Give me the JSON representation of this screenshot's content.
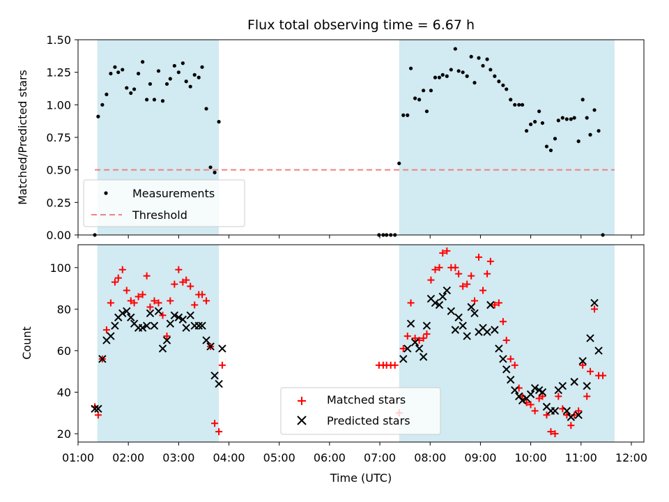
{
  "chart_data": [
    {
      "type": "scatter",
      "title": "Flux total observing time = 6.67 h",
      "xlabel": "",
      "ylabel": "Matched/Predicted stars",
      "xlim": [
        "01:00",
        "12:15"
      ],
      "ylim": [
        0,
        1.5
      ],
      "yticks": [
        "0.00",
        "0.25",
        "0.50",
        "0.75",
        "1.00",
        "1.25",
        "1.50"
      ],
      "grid": false,
      "legend_position": "lower-left",
      "shaded_spans": [
        {
          "start": "01:23",
          "end": "03:48",
          "color": "#add8e6"
        },
        {
          "start": "07:23",
          "end": "11:40",
          "color": "#add8e6"
        }
      ],
      "threshold": {
        "name": "Threshold",
        "value": 0.5,
        "x_start": "01:20",
        "x_end": "11:40",
        "color": "#f08080",
        "style": "dashed"
      },
      "series": [
        {
          "name": "Measurements",
          "marker": "dot",
          "color": "#000000",
          "x": [
            "01:20",
            "01:24",
            "01:29",
            "01:34",
            "01:39",
            "01:44",
            "01:48",
            "01:53",
            "01:58",
            "02:03",
            "02:07",
            "02:12",
            "02:17",
            "02:22",
            "02:26",
            "02:31",
            "02:36",
            "02:41",
            "02:46",
            "02:50",
            "02:55",
            "03:00",
            "03:05",
            "03:09",
            "03:14",
            "03:19",
            "03:24",
            "03:28",
            "03:33",
            "03:38",
            "03:43",
            "03:48",
            "03:52",
            "03:57",
            "06:59",
            "07:04",
            "07:08",
            "07:13",
            "07:18",
            "07:23",
            "07:28",
            "07:33",
            "07:37",
            "07:42",
            "07:47",
            "07:52",
            "07:56",
            "08:01",
            "08:06",
            "08:11",
            "08:15",
            "08:20",
            "08:25",
            "08:30",
            "08:34",
            "08:39",
            "08:44",
            "08:49",
            "08:53",
            "08:58",
            "09:03",
            "09:08",
            "09:12",
            "09:17",
            "09:22",
            "09:27",
            "09:31",
            "09:36",
            "09:41",
            "09:46",
            "09:50",
            "09:55",
            "10:00",
            "10:05",
            "10:10",
            "10:14",
            "10:19",
            "10:24",
            "10:29",
            "10:33",
            "10:38",
            "10:43",
            "10:48",
            "10:52",
            "10:57",
            "11:02",
            "11:07",
            "11:11",
            "11:16",
            "11:21",
            "11:26",
            "11:31",
            "11:35",
            "11:40",
            "11:45"
          ],
          "y": [
            0.0,
            0.91,
            1.0,
            1.08,
            1.24,
            1.29,
            1.25,
            1.27,
            1.13,
            1.09,
            1.12,
            1.24,
            1.33,
            1.04,
            1.16,
            1.04,
            1.26,
            1.03,
            1.16,
            1.2,
            1.3,
            1.25,
            1.32,
            1.18,
            1.14,
            1.23,
            1.21,
            1.29,
            0.97,
            0.52,
            0.48,
            0.87,
            null,
            null,
            0.0,
            0.0,
            0.0,
            0.0,
            0.0,
            0.55,
            0.92,
            0.92,
            1.28,
            1.05,
            1.04,
            1.11,
            0.95,
            1.11,
            1.21,
            1.21,
            1.23,
            1.22,
            1.27,
            1.43,
            1.26,
            1.25,
            1.22,
            1.37,
            1.17,
            1.36,
            1.3,
            1.35,
            1.27,
            1.22,
            1.18,
            1.15,
            1.12,
            1.04,
            1.0,
            1.0,
            1.0,
            0.8,
            0.85,
            0.87,
            0.95,
            0.86,
            0.68,
            0.65,
            0.74,
            0.88,
            0.9,
            0.89,
            0.89,
            0.9,
            0.72,
            1.04,
            0.9,
            0.77,
            0.96,
            0.8,
            0.0,
            null,
            null,
            null,
            null
          ]
        }
      ]
    },
    {
      "type": "scatter",
      "title": "",
      "xlabel": "Time (UTC)",
      "ylabel": "Count",
      "xlim": [
        "01:00",
        "12:15"
      ],
      "ylim": [
        16,
        111
      ],
      "yticks": [
        "20",
        "40",
        "60",
        "80",
        "100"
      ],
      "xticks": [
        "01:00",
        "02:00",
        "03:00",
        "04:00",
        "05:00",
        "06:00",
        "07:00",
        "08:00",
        "09:00",
        "10:00",
        "11:00",
        "12:00"
      ],
      "grid": false,
      "legend_position": "lower-center",
      "shaded_spans": [
        {
          "start": "01:23",
          "end": "03:48",
          "color": "#add8e6"
        },
        {
          "start": "07:23",
          "end": "11:40",
          "color": "#add8e6"
        }
      ],
      "series": [
        {
          "name": "Matched stars",
          "marker": "plus",
          "color": "#ff0000",
          "x": [
            "01:20",
            "01:24",
            "01:29",
            "01:34",
            "01:39",
            "01:44",
            "01:48",
            "01:53",
            "01:58",
            "02:03",
            "02:07",
            "02:12",
            "02:17",
            "02:22",
            "02:26",
            "02:31",
            "02:36",
            "02:41",
            "02:46",
            "02:50",
            "02:55",
            "03:00",
            "03:05",
            "03:09",
            "03:14",
            "03:19",
            "03:24",
            "03:28",
            "03:33",
            "03:38",
            "03:43",
            "03:48",
            "03:52",
            "03:57",
            "06:59",
            "07:04",
            "07:08",
            "07:13",
            "07:18",
            "07:23",
            "07:28",
            "07:33",
            "07:37",
            "07:42",
            "07:47",
            "07:52",
            "07:56",
            "08:01",
            "08:06",
            "08:11",
            "08:15",
            "08:20",
            "08:25",
            "08:30",
            "08:34",
            "08:39",
            "08:44",
            "08:49",
            "08:53",
            "08:58",
            "09:03",
            "09:08",
            "09:12",
            "09:17",
            "09:22",
            "09:27",
            "09:31",
            "09:36",
            "09:41",
            "09:46",
            "09:50",
            "09:55",
            "10:00",
            "10:05",
            "10:10",
            "10:14",
            "10:19",
            "10:24",
            "10:29",
            "10:33",
            "10:38",
            "10:43",
            "10:48",
            "10:52",
            "10:57",
            "11:02",
            "11:07",
            "11:11",
            "11:16",
            "11:21",
            "11:26",
            "11:31",
            "11:35",
            "11:40",
            "11:45"
          ],
          "y": [
            33,
            29,
            56,
            70,
            83,
            93,
            95,
            99,
            89,
            84,
            83,
            86,
            87,
            96,
            81,
            84,
            83,
            77,
            67,
            84,
            92,
            99,
            93,
            94,
            91,
            82,
            87,
            87,
            84,
            62,
            25,
            21,
            53,
            null,
            53,
            53,
            53,
            53,
            53,
            30,
            61,
            67,
            83,
            66,
            65,
            66,
            68,
            94,
            99,
            100,
            107,
            108,
            100,
            100,
            97,
            91,
            92,
            96,
            84,
            105,
            89,
            97,
            103,
            82,
            83,
            74,
            65,
            56,
            53,
            42,
            38,
            35,
            34,
            31,
            37,
            38,
            29,
            21,
            20,
            38,
            32,
            29,
            24,
            29,
            31,
            53,
            38,
            50,
            80,
            48,
            48,
            null,
            null,
            null,
            null
          ]
        },
        {
          "name": "Predicted stars",
          "marker": "x",
          "color": "#000000",
          "x": [
            "01:20",
            "01:24",
            "01:29",
            "01:34",
            "01:39",
            "01:44",
            "01:48",
            "01:53",
            "01:58",
            "02:03",
            "02:07",
            "02:12",
            "02:17",
            "02:22",
            "02:26",
            "02:31",
            "02:36",
            "02:41",
            "02:46",
            "02:50",
            "02:55",
            "03:00",
            "03:05",
            "03:09",
            "03:14",
            "03:19",
            "03:24",
            "03:28",
            "03:33",
            "03:38",
            "03:43",
            "03:48",
            "03:52",
            "03:57",
            "06:59",
            "07:04",
            "07:08",
            "07:13",
            "07:18",
            "07:23",
            "07:28",
            "07:33",
            "07:37",
            "07:42",
            "07:47",
            "07:52",
            "07:56",
            "08:01",
            "08:06",
            "08:11",
            "08:15",
            "08:20",
            "08:25",
            "08:30",
            "08:34",
            "08:39",
            "08:44",
            "08:49",
            "08:53",
            "08:58",
            "09:03",
            "09:08",
            "09:12",
            "09:17",
            "09:22",
            "09:27",
            "09:31",
            "09:36",
            "09:41",
            "09:46",
            "09:50",
            "09:55",
            "10:00",
            "10:05",
            "10:10",
            "10:14",
            "10:19",
            "10:24",
            "10:29",
            "10:33",
            "10:38",
            "10:43",
            "10:48",
            "10:52",
            "10:57",
            "11:02",
            "11:07",
            "11:11",
            "11:16",
            "11:21",
            "11:26",
            "11:31",
            "11:35",
            "11:40",
            "11:45"
          ],
          "y": [
            32,
            32,
            56,
            65,
            67,
            72,
            76,
            78,
            79,
            76,
            73,
            71,
            71,
            72,
            78,
            72,
            79,
            61,
            65,
            73,
            77,
            76,
            75,
            71,
            77,
            72,
            72,
            72,
            65,
            62,
            48,
            44,
            61,
            null,
            null,
            null,
            null,
            null,
            null,
            null,
            56,
            61,
            73,
            64,
            61,
            57,
            72,
            85,
            83,
            82,
            86,
            89,
            79,
            70,
            76,
            72,
            67,
            81,
            78,
            69,
            71,
            69,
            82,
            70,
            61,
            56,
            51,
            46,
            41,
            38,
            36,
            37,
            39,
            42,
            41,
            40,
            33,
            31,
            31,
            41,
            43,
            31,
            28,
            45,
            29,
            55,
            43,
            66,
            83,
            60,
            null,
            null,
            null,
            null,
            null
          ]
        }
      ]
    }
  ]
}
